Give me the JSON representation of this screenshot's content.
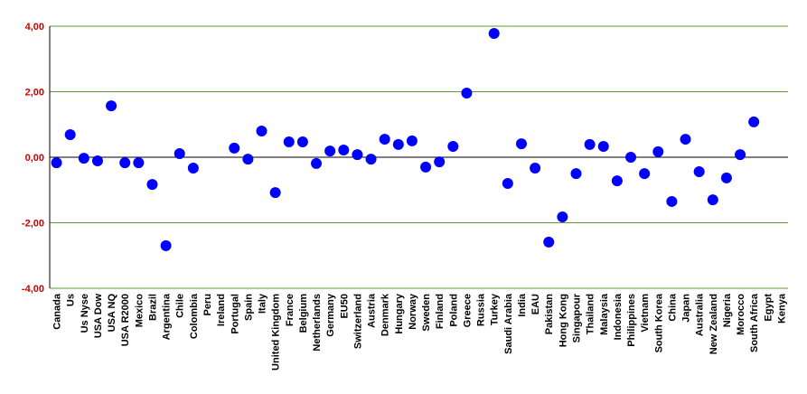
{
  "chart_data": {
    "type": "scatter",
    "categories": [
      "Canada",
      "Us",
      "Us Nyse",
      "USA Dow",
      "USA NQ",
      "USA R2000",
      "Mexico",
      "Brazil",
      "Argentina",
      "Chile",
      "Colombia",
      "Peru",
      "Ireland",
      "Portugal",
      "Spain",
      "Italy",
      "United Kingdom",
      "France",
      "Belgium",
      "Netherlands",
      "Germany",
      "EU50",
      "Switzerland",
      "Austria",
      "Denmark",
      "Hungary",
      "Norway",
      "Sweden",
      "Finland",
      "Poland",
      "Greece",
      "Russia",
      "Turkey",
      "Saudi Arabia",
      "India",
      "EAU",
      "Pakistan",
      "Hong Kong",
      "Singapour",
      "Thailand",
      "Malaysia",
      "Indonesia",
      "Philippines",
      "Vietnam",
      "South Korea",
      "China",
      "Japan",
      "Australia",
      "New Zealand",
      "Nigeria",
      "Morocco",
      "South Africa",
      "Egypt",
      "Kenya"
    ],
    "values": [
      -0.17,
      0.69,
      -0.03,
      -0.11,
      1.57,
      -0.17,
      -0.17,
      -0.83,
      -2.7,
      0.11,
      -0.33,
      null,
      null,
      0.28,
      -0.06,
      0.8,
      -1.08,
      0.47,
      0.47,
      -0.19,
      0.19,
      0.22,
      0.08,
      -0.06,
      0.55,
      0.39,
      0.5,
      -0.3,
      -0.14,
      0.33,
      1.96,
      null,
      3.78,
      -0.8,
      0.41,
      -0.33,
      -2.59,
      -1.82,
      -0.5,
      0.39,
      0.33,
      -0.72,
      0.0,
      -0.5,
      0.17,
      -1.35,
      0.55,
      -0.44,
      -1.3,
      -0.63,
      0.08,
      1.08,
      null,
      null
    ],
    "color": "#0000ff",
    "ylim": [
      -4,
      4
    ],
    "yticks": [
      {
        "value": -4,
        "label": "-4,00"
      },
      {
        "value": -2,
        "label": "-2,00"
      },
      {
        "value": 0,
        "label": "0,00"
      },
      {
        "value": 2,
        "label": "2,00"
      },
      {
        "value": 4,
        "label": "4,00"
      }
    ],
    "grid": true,
    "grid_color": "#669933",
    "tick_label_color": "#cc0000"
  }
}
